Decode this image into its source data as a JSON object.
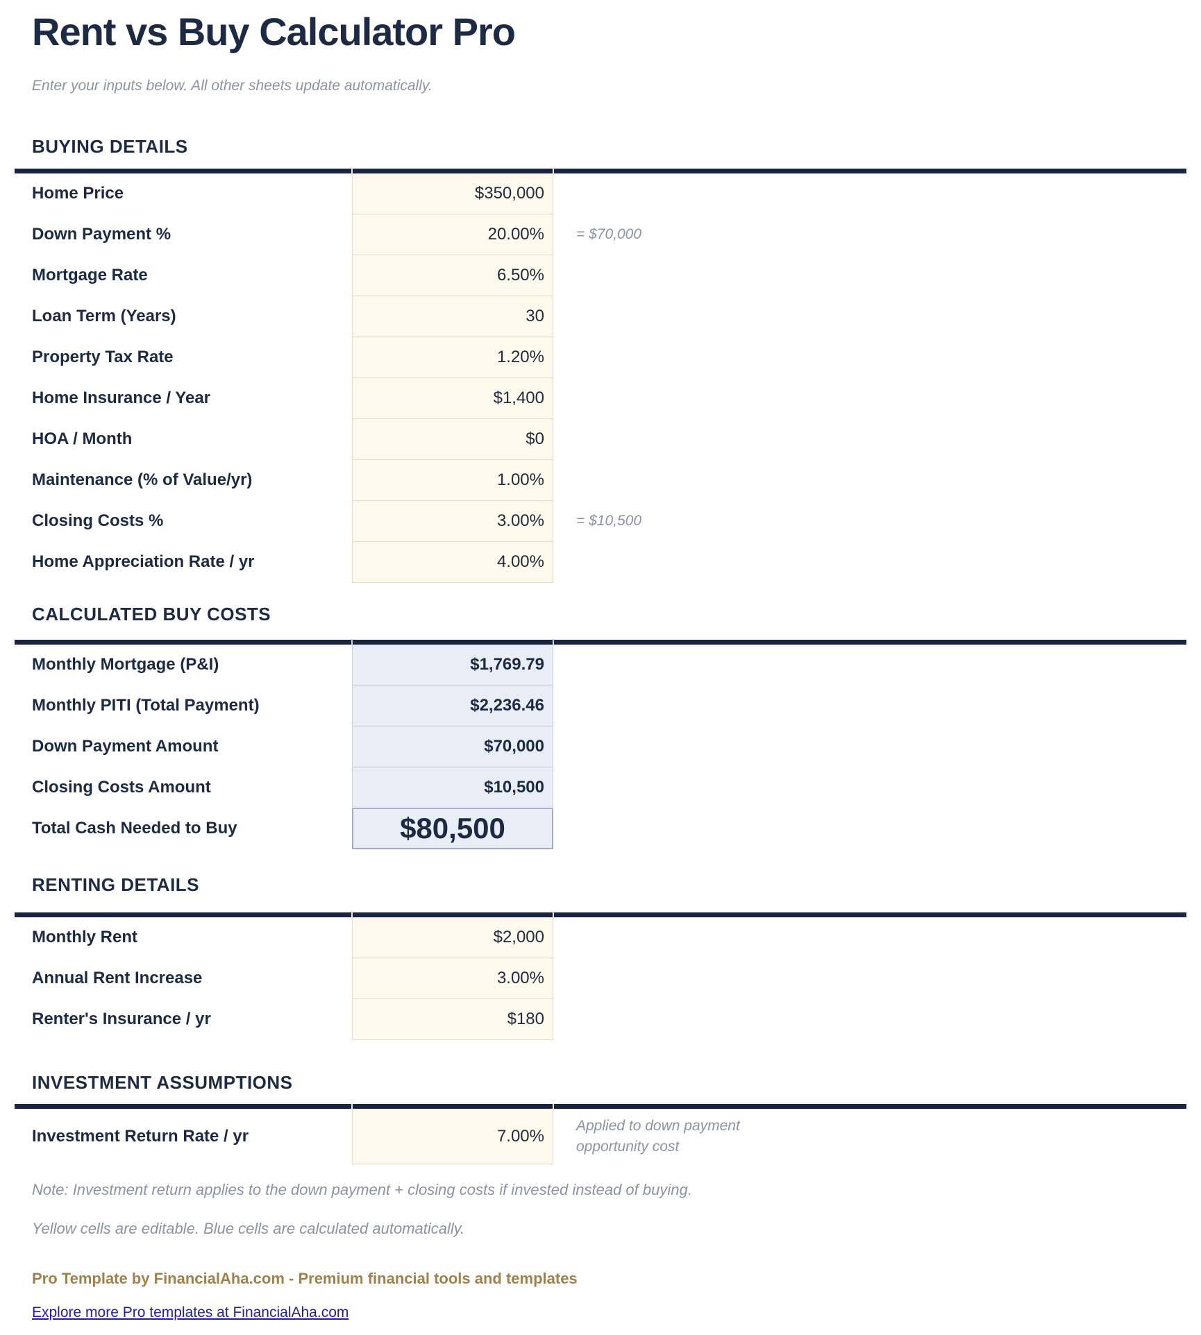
{
  "header": {
    "title": "Rent vs Buy Calculator Pro",
    "subtitle": "Enter your inputs below. All other sheets update automatically."
  },
  "colors": {
    "navy": "#1c2a44",
    "rule": "#182440",
    "cream": "#fdf9ec",
    "tan": "#e5ddc0",
    "blue": "#e9edf6",
    "blueBorder": "#c6cedf",
    "totalBorder": "#9fabc2",
    "gray": "#8a93a4",
    "gold": "#a28049",
    "link": "#1e1caf",
    "value": "#212b3d"
  },
  "sections": [
    {
      "id": "buying",
      "title": "BUYING DETAILS",
      "rows": [
        {
          "id": "home-price",
          "label": "Home Price",
          "value": "$350,000",
          "editable": true
        },
        {
          "id": "down-payment-pct",
          "label": "Down Payment %",
          "value": "20.00%",
          "editable": true,
          "note": "= $70,000"
        },
        {
          "id": "mortgage-rate",
          "label": "Mortgage Rate",
          "value": "6.50%",
          "editable": true
        },
        {
          "id": "loan-term",
          "label": "Loan Term (Years)",
          "value": "30",
          "editable": true
        },
        {
          "id": "property-tax-rate",
          "label": "Property Tax Rate",
          "value": "1.20%",
          "editable": true
        },
        {
          "id": "home-insurance",
          "label": "Home Insurance / Year",
          "value": "$1,400",
          "editable": true
        },
        {
          "id": "hoa-month",
          "label": "HOA / Month",
          "value": "$0",
          "editable": true
        },
        {
          "id": "maintenance-pct",
          "label": "Maintenance (% of Value/yr)",
          "value": "1.00%",
          "editable": true
        },
        {
          "id": "closing-costs-pct",
          "label": "Closing Costs %",
          "value": "3.00%",
          "editable": true,
          "note": "= $10,500"
        },
        {
          "id": "appreciation-rate",
          "label": "Home Appreciation Rate / yr",
          "value": "4.00%",
          "editable": true
        }
      ]
    },
    {
      "id": "calculated",
      "title": "CALCULATED BUY COSTS",
      "rows": [
        {
          "id": "monthly-mortgage",
          "label": "Monthly Mortgage (P&I)",
          "value": "$1,769.79",
          "editable": false
        },
        {
          "id": "monthly-piti",
          "label": "Monthly PITI (Total Payment)",
          "value": "$2,236.46",
          "editable": false
        },
        {
          "id": "down-payment-amount",
          "label": "Down Payment Amount",
          "value": "$70,000",
          "editable": false
        },
        {
          "id": "closing-costs-amount",
          "label": "Closing Costs Amount",
          "value": "$10,500",
          "editable": false
        },
        {
          "id": "total-cash-needed",
          "label": "Total Cash Needed to Buy",
          "value": "$80,500",
          "editable": false,
          "emphasis": true
        }
      ]
    },
    {
      "id": "renting",
      "title": "RENTING DETAILS",
      "rows": [
        {
          "id": "monthly-rent",
          "label": "Monthly Rent",
          "value": "$2,000",
          "editable": true
        },
        {
          "id": "annual-rent-increase",
          "label": "Annual Rent Increase",
          "value": "3.00%",
          "editable": true
        },
        {
          "id": "renters-insurance",
          "label": "Renter's Insurance / yr",
          "value": "$180",
          "editable": true
        }
      ]
    },
    {
      "id": "investment",
      "title": "INVESTMENT ASSUMPTIONS",
      "rows": [
        {
          "id": "investment-return-rate",
          "label": "Investment Return Rate / yr",
          "value": "7.00%",
          "editable": true,
          "note": "Applied to down payment opportunity cost"
        }
      ]
    }
  ],
  "notes": [
    "Note: Investment return applies to the down payment + closing costs if invested instead of buying.",
    "Yellow cells are editable. Blue cells are calculated automatically."
  ],
  "footer": {
    "credit": "Pro Template by FinancialAha.com - Premium financial tools and templates",
    "link_label": "Explore more Pro templates at FinancialAha.com"
  }
}
